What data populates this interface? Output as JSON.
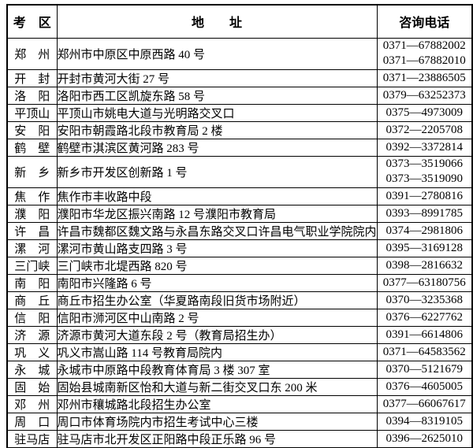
{
  "colors": {
    "background": "#ffffff",
    "text": "#000000",
    "border": "#000000"
  },
  "table": {
    "headers": [
      {
        "key": "district",
        "label": "考　区"
      },
      {
        "key": "address",
        "label": "地　　址"
      },
      {
        "key": "phone",
        "label": "咨询电话"
      }
    ],
    "rows": [
      {
        "district": "郑　州",
        "address": "郑州市中原区中原西路 40 号",
        "phones": [
          "0371—67882002",
          "0371—67882010"
        ]
      },
      {
        "district": "开　封",
        "address": "开封市黄河大街 27 号",
        "phones": [
          "0371—23886505"
        ]
      },
      {
        "district": "洛　阳",
        "address": "洛阳市西工区凯旋东路 58 号",
        "phones": [
          "0379—63252373"
        ]
      },
      {
        "district": "平顶山",
        "address": "平顶山市姚电大道与光明路交叉口",
        "phones": [
          "0375—4973009"
        ]
      },
      {
        "district": "安　阳",
        "address": "安阳市朝霞路北段市教育局 2 楼",
        "phones": [
          "0372—2205708"
        ]
      },
      {
        "district": "鹤　壁",
        "address": "鹤壁市淇滨区黄河路 283 号",
        "phones": [
          "0392—3372814"
        ]
      },
      {
        "district": "新　乡",
        "address": "新乡市开发区创新路 1 号",
        "phones": [
          "0373—3519066",
          "0373—3519090"
        ]
      },
      {
        "district": "焦　作",
        "address": "焦作市丰收路中段",
        "phones": [
          "0391—2780816"
        ]
      },
      {
        "district": "濮　阳",
        "address": "濮阳市华龙区振兴南路 12 号濮阳市教育局",
        "phones": [
          "0393—8991785"
        ]
      },
      {
        "district": "许　昌",
        "address": "许昌市魏都区魏文路与永昌东路交叉口许昌电气职业学院院内",
        "phones": [
          "0374—2981806"
        ]
      },
      {
        "district": "漯　河",
        "address": "漯河市黄山路支四路 3 号",
        "phones": [
          "0395—3169128"
        ]
      },
      {
        "district": "三门峡",
        "address": "三门峡市北堤西路 820 号",
        "phones": [
          "0398—2816632"
        ]
      },
      {
        "district": "南　阳",
        "address": "南阳市兴隆路 6 号",
        "phones": [
          "0377—63180756"
        ]
      },
      {
        "district": "商　丘",
        "address": "商丘市招生办公室（华夏路南段旧货市场附近）",
        "phones": [
          "0370—3235368"
        ]
      },
      {
        "district": "信　阳",
        "address": "信阳市浉河区中山南路 2 号",
        "phones": [
          "0376—6227762"
        ]
      },
      {
        "district": "济　源",
        "address": "济源市黄河大道东段 2 号（教育局招生办）",
        "phones": [
          "0391—6614806"
        ]
      },
      {
        "district": "巩　义",
        "address": "巩义市嵩山路 114 号教育局院内",
        "phones": [
          "0371—64583562"
        ]
      },
      {
        "district": "永　城",
        "address": "永城市中原路中段教育体育局 3 楼 307 室",
        "phones": [
          "0370—5121679"
        ]
      },
      {
        "district": "固　始",
        "address": "固始县城南新区怡和大道与新二街交叉口东 200 米",
        "phones": [
          "0376—4605005"
        ]
      },
      {
        "district": "邓　州",
        "address": "邓州市穰城路北段招生办公室",
        "phones": [
          "0377—66067617"
        ]
      },
      {
        "district": "周　口",
        "address": "周口市体育场院内市招生考试中心三楼",
        "phones": [
          "0394—8319105"
        ]
      },
      {
        "district": "驻马店",
        "address": "驻马店市北开发区正阳路中段正乐路 96 号",
        "phones": [
          "0396—2625010"
        ]
      }
    ]
  }
}
